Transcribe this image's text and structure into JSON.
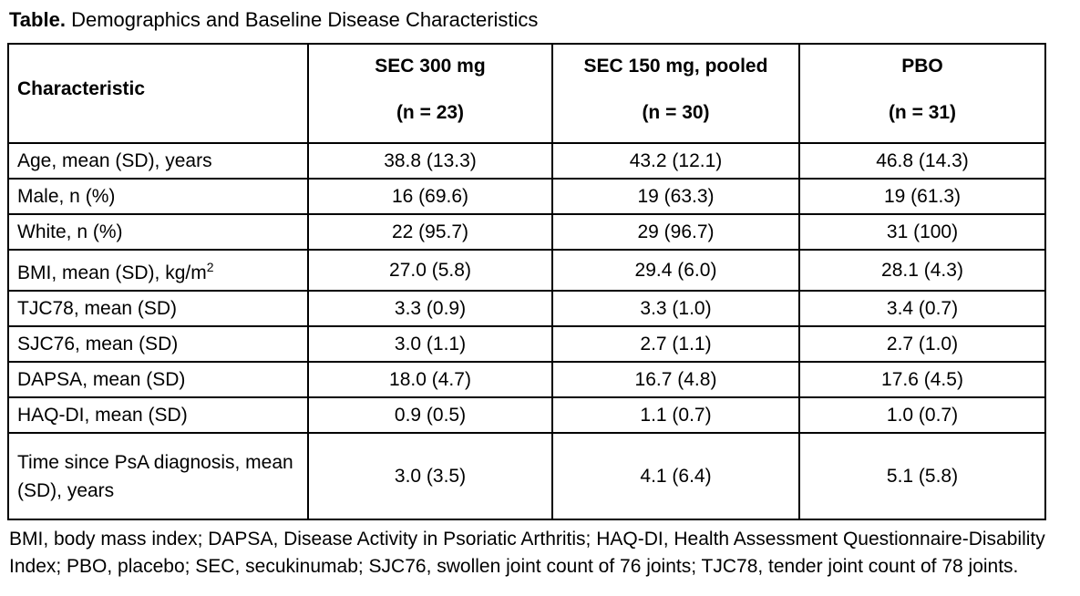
{
  "title": {
    "label": "Table.",
    "text": "Demographics and Baseline Disease Characteristics"
  },
  "table": {
    "header": {
      "characteristic": "Characteristic",
      "columns": [
        {
          "name": "SEC 300 mg",
          "n": "(n = 23)"
        },
        {
          "name": "SEC 150 mg, pooled",
          "n": "(n = 30)"
        },
        {
          "name": "PBO",
          "n": "(n = 31)"
        }
      ]
    },
    "rows": [
      {
        "characteristic": "Age, mean (SD), years",
        "values": [
          "38.8 (13.3)",
          "43.2 (12.1)",
          "46.8 (14.3)"
        ]
      },
      {
        "characteristic": "Male, n (%)",
        "values": [
          "16 (69.6)",
          "19 (63.3)",
          "19 (61.3)"
        ]
      },
      {
        "characteristic": "White, n (%)",
        "values": [
          "22 (95.7)",
          "29 (96.7)",
          "31 (100)"
        ]
      },
      {
        "characteristic": "BMI, mean (SD), kg/m",
        "characteristic_sup": "2",
        "values": [
          "27.0 (5.8)",
          "29.4 (6.0)",
          "28.1 (4.3)"
        ]
      },
      {
        "characteristic": "TJC78, mean (SD)",
        "values": [
          "3.3 (0.9)",
          "3.3 (1.0)",
          "3.4 (0.7)"
        ]
      },
      {
        "characteristic": "SJC76, mean (SD)",
        "values": [
          "3.0 (1.1)",
          "2.7 (1.1)",
          "2.7 (1.0)"
        ]
      },
      {
        "characteristic": "DAPSA, mean (SD)",
        "values": [
          "18.0 (4.7)",
          "16.7 (4.8)",
          "17.6 (4.5)"
        ]
      },
      {
        "characteristic": "HAQ-DI, mean (SD)",
        "values": [
          "0.9 (0.5)",
          "1.1 (0.7)",
          "1.0 (0.7)"
        ]
      },
      {
        "characteristic": "Time since PsA diagnosis, mean (SD), years",
        "values": [
          "3.0 (3.5)",
          "4.1 (6.4)",
          "5.1 (5.8)"
        ]
      }
    ]
  },
  "footnote": "BMI, body mass index; DAPSA, Disease Activity in Psoriatic Arthritis; HAQ-DI, Health Assessment Questionnaire-Disability Index; PBO, placebo; SEC, secukinumab; SJC76, swollen joint count of 76 joints; TJC78, tender joint count of 78 joints."
}
